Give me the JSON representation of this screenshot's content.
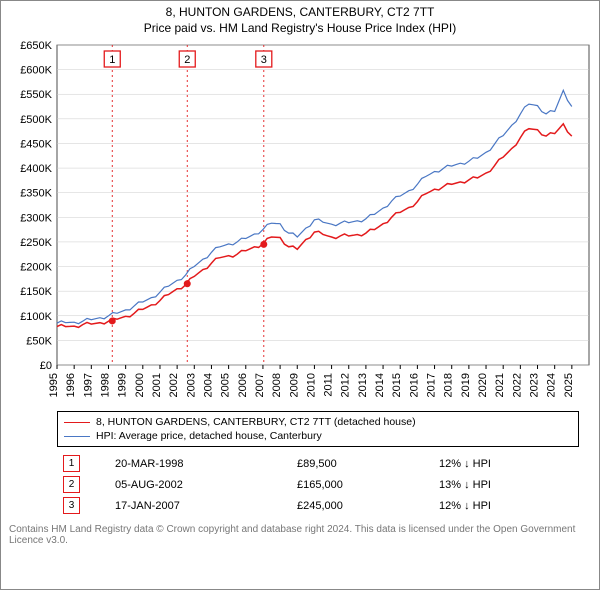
{
  "header": {
    "title": "8, HUNTON GARDENS, CANTERBURY, CT2 7TT",
    "subtitle": "Price paid vs. HM Land Registry's House Price Index (HPI)"
  },
  "chart": {
    "type": "line",
    "background": "#ffffff",
    "axis_color": "#000000",
    "grid_color": "#cccccc",
    "font_size": 11,
    "x": {
      "min": 1995,
      "max": 2026,
      "ticks": [
        1995,
        1996,
        1997,
        1998,
        1999,
        2000,
        2001,
        2002,
        2003,
        2004,
        2005,
        2006,
        2007,
        2008,
        2009,
        2010,
        2011,
        2012,
        2013,
        2014,
        2015,
        2016,
        2017,
        2018,
        2019,
        2020,
        2021,
        2022,
        2023,
        2024,
        2025
      ]
    },
    "y": {
      "min": 0,
      "max": 650000,
      "ticks": [
        0,
        50000,
        100000,
        150000,
        200000,
        250000,
        300000,
        350000,
        400000,
        450000,
        500000,
        550000,
        600000,
        650000
      ],
      "labels": [
        "£0",
        "£50K",
        "£100K",
        "£150K",
        "£200K",
        "£250K",
        "£300K",
        "£350K",
        "£400K",
        "£450K",
        "£500K",
        "£550K",
        "£600K",
        "£650K"
      ]
    },
    "series": [
      {
        "name": "8, HUNTON GARDENS, CANTERBURY, CT2 7TT (detached house)",
        "color": "#e31a1c",
        "width": 1.5,
        "points": [
          [
            1995,
            78000
          ],
          [
            1995.5,
            78000
          ],
          [
            1996,
            79000
          ],
          [
            1996.5,
            82000
          ],
          [
            1997,
            83000
          ],
          [
            1997.5,
            86000
          ],
          [
            1998,
            89000
          ],
          [
            1998.5,
            93000
          ],
          [
            1999,
            99000
          ],
          [
            1999.5,
            105000
          ],
          [
            2000,
            113000
          ],
          [
            2000.5,
            122000
          ],
          [
            2001,
            131000
          ],
          [
            2001.5,
            143000
          ],
          [
            2002,
            155000
          ],
          [
            2002.5,
            163000
          ],
          [
            2003,
            180000
          ],
          [
            2003.5,
            194000
          ],
          [
            2004,
            207000
          ],
          [
            2004.5,
            218000
          ],
          [
            2005,
            222000
          ],
          [
            2005.5,
            225000
          ],
          [
            2006,
            232000
          ],
          [
            2006.5,
            240000
          ],
          [
            2007,
            246000
          ],
          [
            2007.5,
            260000
          ],
          [
            2008,
            259000
          ],
          [
            2008.5,
            240000
          ],
          [
            2009,
            235000
          ],
          [
            2009.5,
            255000
          ],
          [
            2010,
            270000
          ],
          [
            2010.5,
            265000
          ],
          [
            2011,
            260000
          ],
          [
            2011.5,
            262000
          ],
          [
            2012,
            262000
          ],
          [
            2012.5,
            265000
          ],
          [
            2013,
            268000
          ],
          [
            2013.5,
            275000
          ],
          [
            2014,
            287000
          ],
          [
            2014.5,
            300000
          ],
          [
            2015,
            310000
          ],
          [
            2015.5,
            320000
          ],
          [
            2016,
            332000
          ],
          [
            2016.5,
            348000
          ],
          [
            2017,
            357000
          ],
          [
            2017.5,
            362000
          ],
          [
            2018,
            367000
          ],
          [
            2018.5,
            372000
          ],
          [
            2019,
            376000
          ],
          [
            2019.5,
            380000
          ],
          [
            2020,
            390000
          ],
          [
            2020.5,
            405000
          ],
          [
            2021,
            422000
          ],
          [
            2021.5,
            440000
          ],
          [
            2022,
            462000
          ],
          [
            2022.5,
            480000
          ],
          [
            2023,
            478000
          ],
          [
            2023.5,
            465000
          ],
          [
            2024,
            470000
          ],
          [
            2024.5,
            490000
          ],
          [
            2025,
            465000
          ]
        ]
      },
      {
        "name": "HPI: Average price, detached house, Canterbury",
        "color": "#4a77c4",
        "width": 1.2,
        "points": [
          [
            1995,
            85000
          ],
          [
            1995.5,
            86000
          ],
          [
            1996,
            87000
          ],
          [
            1996.5,
            89000
          ],
          [
            1997,
            92000
          ],
          [
            1997.5,
            96000
          ],
          [
            1998,
            100000
          ],
          [
            1998.5,
            105000
          ],
          [
            1999,
            112000
          ],
          [
            1999.5,
            120000
          ],
          [
            2000,
            128000
          ],
          [
            2000.5,
            137000
          ],
          [
            2001,
            148000
          ],
          [
            2001.5,
            160000
          ],
          [
            2002,
            172000
          ],
          [
            2002.5,
            183000
          ],
          [
            2003,
            200000
          ],
          [
            2003.5,
            215000
          ],
          [
            2004,
            229000
          ],
          [
            2004.5,
            240000
          ],
          [
            2005,
            246000
          ],
          [
            2005.5,
            250000
          ],
          [
            2006,
            257000
          ],
          [
            2006.5,
            266000
          ],
          [
            2007,
            275000
          ],
          [
            2007.5,
            288000
          ],
          [
            2008,
            287000
          ],
          [
            2008.5,
            268000
          ],
          [
            2009,
            260000
          ],
          [
            2009.5,
            278000
          ],
          [
            2010,
            295000
          ],
          [
            2010.5,
            290000
          ],
          [
            2011,
            286000
          ],
          [
            2011.5,
            288000
          ],
          [
            2012,
            289000
          ],
          [
            2012.5,
            293000
          ],
          [
            2013,
            297000
          ],
          [
            2013.5,
            306000
          ],
          [
            2014,
            319000
          ],
          [
            2014.5,
            333000
          ],
          [
            2015,
            343000
          ],
          [
            2015.5,
            354000
          ],
          [
            2016,
            367000
          ],
          [
            2016.5,
            383000
          ],
          [
            2017,
            393000
          ],
          [
            2017.5,
            399000
          ],
          [
            2018,
            404000
          ],
          [
            2018.5,
            410000
          ],
          [
            2019,
            414000
          ],
          [
            2019.5,
            420000
          ],
          [
            2020,
            432000
          ],
          [
            2020.5,
            449000
          ],
          [
            2021,
            466000
          ],
          [
            2021.5,
            487000
          ],
          [
            2022,
            510000
          ],
          [
            2022.5,
            530000
          ],
          [
            2023,
            527000
          ],
          [
            2023.5,
            510000
          ],
          [
            2024,
            515000
          ],
          [
            2024.5,
            558000
          ],
          [
            2025,
            525000
          ]
        ]
      }
    ],
    "events": [
      {
        "n": "1",
        "x": 1998.22,
        "date": "20-MAR-1998",
        "price": "£89,500",
        "delta": "12% ↓ HPI",
        "price_y": 89500,
        "color": "#e31a1c"
      },
      {
        "n": "2",
        "x": 2002.59,
        "date": "05-AUG-2002",
        "price": "£165,000",
        "delta": "13% ↓ HPI",
        "price_y": 165000,
        "color": "#e31a1c"
      },
      {
        "n": "3",
        "x": 2007.05,
        "date": "17-JAN-2007",
        "price": "£245,000",
        "delta": "12% ↓ HPI",
        "price_y": 245000,
        "color": "#e31a1c"
      }
    ],
    "event_line_color": "#e31a1c",
    "event_marker_border": "#e31a1c"
  },
  "legend": {
    "items": [
      {
        "color": "#e31a1c",
        "label": "8, HUNTON GARDENS, CANTERBURY, CT2 7TT (detached house)"
      },
      {
        "color": "#4a77c4",
        "label": "HPI: Average price, detached house, Canterbury"
      }
    ]
  },
  "attribution": "Contains HM Land Registry data © Crown copyright and database right 2024. This data is licensed under the Open Government Licence v3.0."
}
